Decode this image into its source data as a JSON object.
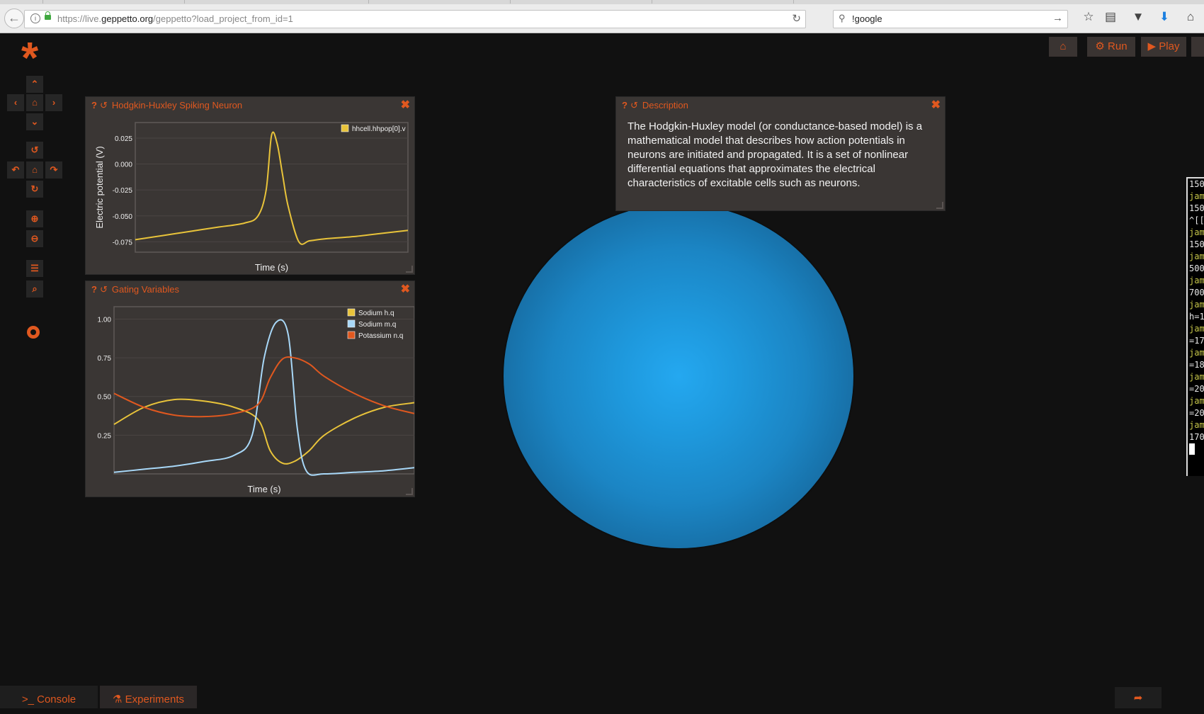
{
  "browser": {
    "url_prefix": "https://live.",
    "url_host": "geppetto.org",
    "url_path": "/geppetto?load_project_from_id=1",
    "search_text": "!google"
  },
  "toolbar": {
    "logo": "*",
    "up": "⌃",
    "left": "‹",
    "home": "⌂",
    "right": "›",
    "down": "⌄",
    "rot_up": "↺",
    "rot_left": "↶",
    "rot_home": "⌂",
    "rot_right": "↷",
    "rot_down": "↻",
    "zoom_in": "⊕",
    "zoom_out": "⊖",
    "list": "☰",
    "search": "⌕"
  },
  "top_buttons": {
    "home": "⌂",
    "run_icon": "⚙",
    "run": "Run",
    "play_icon": "▶",
    "play": "Play"
  },
  "widgets": {
    "hh": {
      "title": "Hodgkin-Huxley Spiking Neuron"
    },
    "gating": {
      "title": "Gating Variables"
    },
    "description": {
      "title": "Description",
      "body": "The Hodgkin-Huxley model (or conductance-based model) is a mathematical model that describes how action potentials in neurons are initiated and propagated. It is a set of nonlinear differential equations that approximates the electrical characteristics of excitable cells such as neurons."
    }
  },
  "terminal": {
    "lines": [
      "150",
      "jam",
      "150",
      "^[[",
      "jam",
      "150",
      "jam",
      "500",
      "jam",
      "700",
      "jam",
      "h=1",
      "jam",
      "=17",
      "jam",
      "=18",
      "jam",
      "=20",
      "jam",
      "=20",
      "jam",
      "170"
    ]
  },
  "bottom": {
    "console_icon": ">_",
    "console": "Console",
    "experiments_icon": "⚗",
    "experiments": "Experiments",
    "share": "➦"
  },
  "colors": {
    "accent": "#e0581f",
    "voltage": "#e8c33a",
    "sodium_h": "#e8c33a",
    "sodium_m": "#a8d8f8",
    "potassium_n": "#e0581f"
  },
  "chart_data": [
    {
      "type": "line",
      "title": "",
      "xlabel": "Time (s)",
      "ylabel": "Electric potential (V)",
      "ylim": [
        -0.085,
        0.04
      ],
      "y_ticks": [
        "0.025",
        "0.000",
        "-0.025",
        "-0.050",
        "-0.075"
      ],
      "legend": "top-right",
      "series": [
        {
          "name": "hhcell.hhpop[0].v",
          "x": [
            0,
            10,
            20,
            30,
            40,
            45,
            48,
            50,
            52,
            54,
            56,
            60,
            64,
            70,
            80,
            90,
            100
          ],
          "values": [
            -0.073,
            -0.069,
            -0.065,
            -0.061,
            -0.057,
            -0.05,
            -0.025,
            0.028,
            0.02,
            -0.01,
            -0.04,
            -0.075,
            -0.074,
            -0.072,
            -0.07,
            -0.067,
            -0.064
          ]
        }
      ]
    },
    {
      "type": "line",
      "title": "",
      "xlabel": "Time (s)",
      "ylabel": "",
      "ylim": [
        0,
        1.08
      ],
      "y_ticks": [
        "1.00",
        "0.75",
        "0.50",
        "0.25"
      ],
      "legend": "top-right",
      "series": [
        {
          "name": "Sodium h.q",
          "x": [
            0,
            10,
            20,
            30,
            40,
            48,
            52,
            56,
            60,
            65,
            70,
            80,
            90,
            100
          ],
          "values": [
            0.32,
            0.43,
            0.48,
            0.47,
            0.43,
            0.35,
            0.15,
            0.07,
            0.08,
            0.15,
            0.25,
            0.36,
            0.43,
            0.46
          ]
        },
        {
          "name": "Sodium m.q",
          "x": [
            0,
            10,
            20,
            30,
            40,
            46,
            50,
            54,
            58,
            61,
            64,
            70,
            80,
            90,
            100
          ],
          "values": [
            0.01,
            0.03,
            0.05,
            0.08,
            0.12,
            0.25,
            0.75,
            0.98,
            0.9,
            0.3,
            0.02,
            0.0,
            0.01,
            0.02,
            0.04
          ]
        },
        {
          "name": "Potassium n.q",
          "x": [
            0,
            10,
            20,
            30,
            40,
            48,
            52,
            56,
            60,
            65,
            70,
            80,
            90,
            100
          ],
          "values": [
            0.52,
            0.43,
            0.38,
            0.37,
            0.39,
            0.45,
            0.62,
            0.74,
            0.75,
            0.71,
            0.63,
            0.52,
            0.44,
            0.39
          ]
        }
      ]
    }
  ]
}
